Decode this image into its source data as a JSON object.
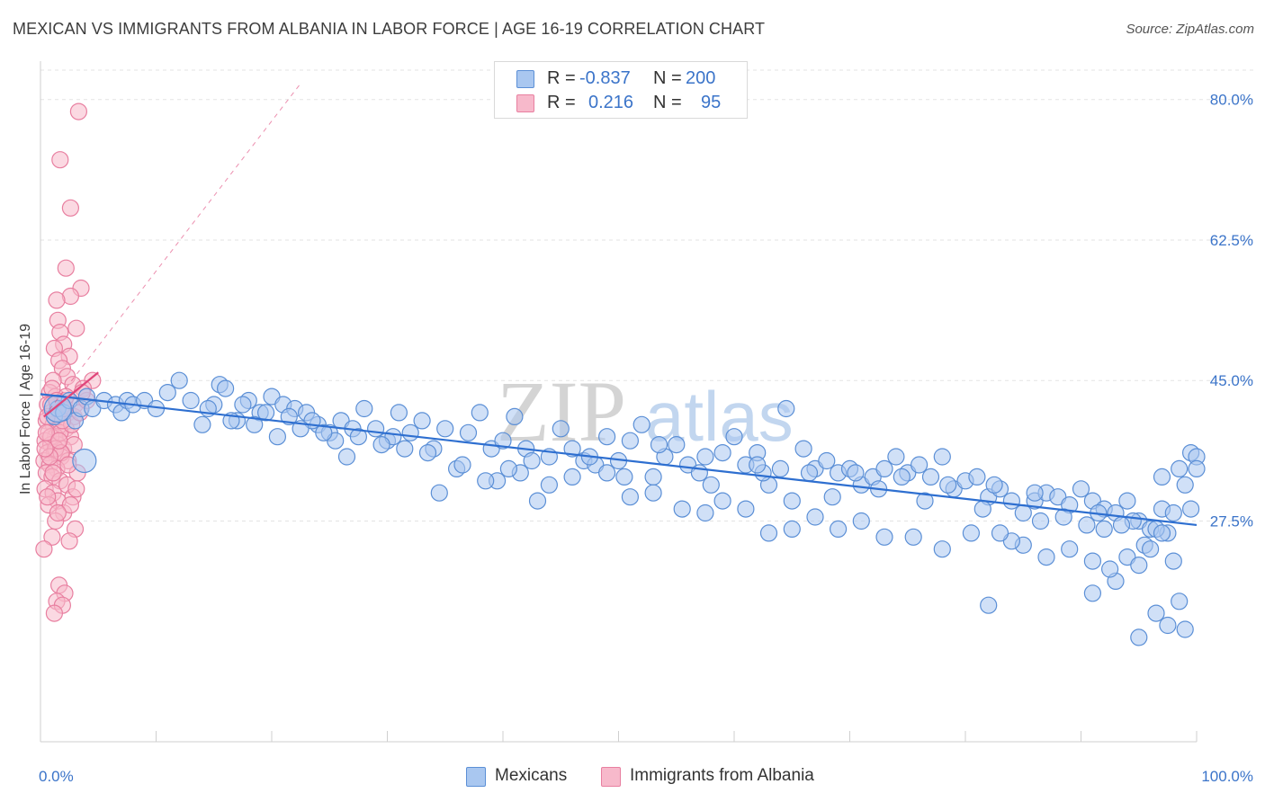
{
  "title": "MEXICAN VS IMMIGRANTS FROM ALBANIA IN LABOR FORCE | AGE 16-19 CORRELATION CHART",
  "source": "Source: ZipAtlas.com",
  "watermark": {
    "zip": "ZIP",
    "atlas": "atlas"
  },
  "colors": {
    "blue_fill": "#a9c7f0",
    "blue_stroke": "#5b8fd6",
    "blue_line": "#2e6fd0",
    "pink_fill": "#f7b9cb",
    "pink_stroke": "#e87fa0",
    "pink_line": "#e0457a",
    "tick_label": "#3b74c9",
    "grid": "#e3e3e3"
  },
  "legend_top": {
    "rows": [
      {
        "r_label": "R =",
        "r_value": "-0.837",
        "n_label": "N =",
        "n_value": "200"
      },
      {
        "r_label": "R =",
        "r_value": "0.216",
        "n_label": "N =",
        "n_value": "95"
      }
    ]
  },
  "legend_bottom": {
    "items": [
      "Mexicans",
      "Immigrants from Albania"
    ]
  },
  "chart_data": {
    "type": "scatter",
    "title": "MEXICAN VS IMMIGRANTS FROM ALBANIA IN LABOR FORCE | AGE 16-19 CORRELATION CHART",
    "xlabel": "",
    "ylabel": "In Labor Force | Age 16-19",
    "xlim": [
      0,
      100
    ],
    "ylim": [
      0,
      84
    ],
    "x_tick_labels": [
      "0.0%",
      "100.0%"
    ],
    "y_ticks": [
      27.5,
      45.0,
      62.5,
      80.0
    ],
    "y_tick_labels": [
      "27.5%",
      "45.0%",
      "62.5%",
      "80.0%"
    ],
    "grid": true,
    "legend_position": "top-center",
    "series": [
      {
        "name": "Mexicans",
        "R": -0.837,
        "N": 200,
        "trend": {
          "x": [
            0,
            100
          ],
          "y": [
            43.3,
            27.0
          ]
        },
        "points": [
          [
            1.2,
            40.5
          ],
          [
            1.5,
            41.5
          ],
          [
            2.0,
            41.0
          ],
          [
            2.5,
            42.5
          ],
          [
            3.0,
            40.0
          ],
          [
            3.5,
            41.5
          ],
          [
            4.0,
            43.0
          ],
          [
            4.5,
            41.5
          ],
          [
            5.5,
            42.5
          ],
          [
            6.5,
            42.0
          ],
          [
            7.0,
            41.0
          ],
          [
            7.5,
            42.5
          ],
          [
            8.0,
            42.0
          ],
          [
            9.0,
            42.5
          ],
          [
            10.0,
            41.5
          ],
          [
            11.0,
            43.5
          ],
          [
            12.0,
            45.0
          ],
          [
            13.0,
            42.5
          ],
          [
            14.0,
            39.5
          ],
          [
            15.5,
            44.5
          ],
          [
            16.0,
            44.0
          ],
          [
            17.0,
            40.0
          ],
          [
            18.0,
            42.5
          ],
          [
            19.0,
            41.0
          ],
          [
            20.0,
            43.0
          ],
          [
            21.0,
            42.0
          ],
          [
            22.0,
            41.5
          ],
          [
            23.0,
            41.0
          ],
          [
            24.0,
            39.5
          ],
          [
            25.0,
            38.5
          ],
          [
            26.0,
            40.0
          ],
          [
            27.0,
            39.0
          ],
          [
            28.0,
            41.5
          ],
          [
            29.0,
            39.0
          ],
          [
            30.0,
            37.5
          ],
          [
            31.0,
            41.0
          ],
          [
            32.0,
            38.5
          ],
          [
            33.0,
            40.0
          ],
          [
            34.0,
            36.5
          ],
          [
            35.0,
            39.0
          ],
          [
            36.0,
            34.0
          ],
          [
            37.0,
            38.5
          ],
          [
            38.0,
            41.0
          ],
          [
            39.0,
            36.5
          ],
          [
            40.0,
            37.5
          ],
          [
            41.0,
            40.5
          ],
          [
            41.5,
            33.5
          ],
          [
            42.0,
            36.5
          ],
          [
            43.0,
            30.0
          ],
          [
            44.0,
            35.5
          ],
          [
            45.0,
            39.0
          ],
          [
            46.0,
            36.5
          ],
          [
            47.0,
            35.0
          ],
          [
            48.0,
            34.5
          ],
          [
            49.0,
            38.0
          ],
          [
            50.0,
            35.0
          ],
          [
            51.0,
            37.5
          ],
          [
            52.0,
            39.5
          ],
          [
            53.0,
            33.0
          ],
          [
            54.0,
            35.5
          ],
          [
            55.0,
            37.0
          ],
          [
            56.0,
            34.5
          ],
          [
            57.0,
            33.5
          ],
          [
            58.0,
            32.0
          ],
          [
            59.0,
            36.0
          ],
          [
            60.0,
            38.0
          ],
          [
            61.0,
            34.5
          ],
          [
            62.0,
            36.0
          ],
          [
            63.0,
            32.0
          ],
          [
            64.0,
            34.0
          ],
          [
            65.0,
            30.0
          ],
          [
            66.0,
            36.5
          ],
          [
            67.0,
            34.0
          ],
          [
            68.0,
            35.0
          ],
          [
            69.0,
            33.5
          ],
          [
            70.0,
            34.0
          ],
          [
            71.0,
            32.0
          ],
          [
            72.0,
            33.0
          ],
          [
            73.0,
            34.0
          ],
          [
            74.0,
            35.5
          ],
          [
            75.0,
            33.5
          ],
          [
            76.0,
            34.5
          ],
          [
            77.0,
            33.0
          ],
          [
            78.0,
            35.5
          ],
          [
            79.0,
            31.5
          ],
          [
            80.0,
            32.5
          ],
          [
            81.0,
            33.0
          ],
          [
            82.0,
            30.5
          ],
          [
            83.0,
            31.5
          ],
          [
            84.0,
            30.0
          ],
          [
            85.0,
            28.5
          ],
          [
            86.0,
            30.0
          ],
          [
            87.0,
            31.0
          ],
          [
            88.0,
            30.5
          ],
          [
            89.0,
            29.5
          ],
          [
            90.0,
            31.5
          ],
          [
            91.0,
            30.0
          ],
          [
            92.0,
            29.0
          ],
          [
            93.0,
            28.5
          ],
          [
            94.0,
            30.0
          ],
          [
            95.0,
            27.5
          ],
          [
            96.0,
            26.5
          ],
          [
            97.0,
            29.0
          ],
          [
            98.0,
            28.5
          ],
          [
            99.0,
            32.0
          ],
          [
            34.5,
            31.0
          ],
          [
            39.5,
            32.5
          ],
          [
            50.5,
            33.0
          ],
          [
            62.5,
            33.5
          ],
          [
            68.5,
            30.5
          ],
          [
            72.5,
            31.5
          ],
          [
            76.5,
            30.0
          ],
          [
            81.5,
            29.0
          ],
          [
            86.5,
            27.5
          ],
          [
            90.5,
            27.0
          ],
          [
            94.5,
            27.5
          ],
          [
            97.5,
            26.0
          ],
          [
            99.5,
            29.0
          ],
          [
            64.5,
            41.5
          ],
          [
            53.5,
            37.0
          ],
          [
            30.5,
            38.0
          ],
          [
            47.5,
            35.5
          ],
          [
            57.5,
            35.5
          ],
          [
            62.0,
            34.5
          ],
          [
            66.5,
            33.5
          ],
          [
            70.5,
            33.5
          ],
          [
            74.5,
            33.0
          ],
          [
            78.5,
            32.0
          ],
          [
            82.5,
            32.0
          ],
          [
            86.0,
            31.0
          ],
          [
            88.5,
            28.0
          ],
          [
            91.5,
            28.5
          ],
          [
            93.5,
            27.0
          ],
          [
            95.5,
            24.5
          ],
          [
            96.5,
            26.5
          ],
          [
            97.0,
            33.0
          ],
          [
            98.5,
            34.0
          ],
          [
            99.5,
            36.0
          ],
          [
            100.0,
            35.5
          ],
          [
            92.0,
            26.5
          ],
          [
            94.0,
            23.0
          ],
          [
            96.0,
            24.0
          ],
          [
            98.0,
            22.5
          ],
          [
            91.0,
            18.5
          ],
          [
            93.0,
            20.0
          ],
          [
            95.0,
            22.0
          ],
          [
            97.0,
            26.0
          ],
          [
            100.0,
            34.0
          ],
          [
            82.0,
            17.0
          ],
          [
            96.5,
            16.0
          ],
          [
            97.5,
            14.5
          ],
          [
            99.0,
            14.0
          ],
          [
            98.5,
            17.5
          ],
          [
            95.0,
            13.0
          ],
          [
            87.0,
            23.0
          ],
          [
            92.5,
            21.5
          ],
          [
            85.0,
            24.5
          ],
          [
            89.0,
            24.0
          ],
          [
            91.0,
            22.5
          ],
          [
            84.0,
            25.0
          ],
          [
            83.0,
            26.0
          ],
          [
            80.5,
            26.0
          ],
          [
            78.0,
            24.0
          ],
          [
            75.5,
            25.5
          ],
          [
            73.0,
            25.5
          ],
          [
            71.0,
            27.5
          ],
          [
            69.0,
            26.5
          ],
          [
            67.0,
            28.0
          ],
          [
            65.0,
            26.5
          ],
          [
            63.0,
            26.0
          ],
          [
            61.0,
            29.0
          ],
          [
            59.0,
            30.0
          ],
          [
            57.5,
            28.5
          ],
          [
            55.5,
            29.0
          ],
          [
            53.0,
            31.0
          ],
          [
            51.0,
            30.5
          ],
          [
            49.0,
            33.5
          ],
          [
            46.0,
            33.0
          ],
          [
            44.0,
            32.0
          ],
          [
            42.5,
            35.0
          ],
          [
            40.5,
            34.0
          ],
          [
            38.5,
            32.5
          ],
          [
            36.5,
            34.5
          ],
          [
            33.5,
            36.0
          ],
          [
            31.5,
            36.5
          ],
          [
            29.5,
            37.0
          ],
          [
            27.5,
            38.0
          ],
          [
            26.5,
            35.5
          ],
          [
            25.5,
            37.5
          ],
          [
            24.5,
            38.5
          ],
          [
            23.5,
            40.0
          ],
          [
            22.5,
            39.0
          ],
          [
            21.5,
            40.5
          ],
          [
            20.5,
            38.0
          ],
          [
            19.5,
            41.0
          ],
          [
            18.5,
            39.5
          ],
          [
            17.5,
            42.0
          ],
          [
            16.5,
            40.0
          ],
          [
            15.0,
            42.0
          ],
          [
            14.5,
            41.5
          ]
        ]
      },
      {
        "name": "Immigrants from Albania",
        "R": 0.216,
        "N": 95,
        "trend": {
          "x": [
            0.3,
            5.0
          ],
          "y": [
            40.5,
            46.0
          ]
        },
        "trend_extended": {
          "x": [
            0.3,
            22.5
          ],
          "y": [
            40.5,
            82.0
          ]
        },
        "points": [
          [
            3.3,
            78.5
          ],
          [
            1.7,
            72.5
          ],
          [
            2.6,
            66.5
          ],
          [
            2.2,
            59.0
          ],
          [
            3.5,
            56.5
          ],
          [
            2.6,
            55.5
          ],
          [
            1.4,
            55.0
          ],
          [
            1.5,
            52.5
          ],
          [
            3.1,
            51.5
          ],
          [
            1.7,
            51.0
          ],
          [
            2.0,
            49.5
          ],
          [
            1.2,
            49.0
          ],
          [
            2.5,
            48.0
          ],
          [
            1.6,
            47.5
          ],
          [
            1.9,
            46.5
          ],
          [
            2.3,
            45.5
          ],
          [
            4.5,
            45.0
          ],
          [
            1.1,
            45.0
          ],
          [
            2.8,
            44.5
          ],
          [
            3.7,
            44.0
          ],
          [
            0.8,
            43.5
          ],
          [
            1.3,
            43.0
          ],
          [
            2.1,
            42.5
          ],
          [
            3.0,
            42.0
          ],
          [
            0.6,
            42.0
          ],
          [
            1.8,
            41.5
          ],
          [
            2.4,
            41.0
          ],
          [
            0.9,
            41.0
          ],
          [
            1.4,
            40.5
          ],
          [
            2.9,
            40.5
          ],
          [
            0.5,
            40.0
          ],
          [
            1.1,
            39.5
          ],
          [
            1.6,
            39.0
          ],
          [
            2.2,
            39.0
          ],
          [
            0.7,
            38.5
          ],
          [
            1.3,
            38.0
          ],
          [
            2.6,
            38.0
          ],
          [
            0.4,
            37.5
          ],
          [
            0.9,
            37.0
          ],
          [
            1.5,
            37.0
          ],
          [
            2.0,
            36.5
          ],
          [
            0.6,
            36.0
          ],
          [
            1.2,
            36.0
          ],
          [
            1.8,
            35.5
          ],
          [
            2.4,
            35.0
          ],
          [
            0.3,
            35.0
          ],
          [
            0.8,
            34.5
          ],
          [
            1.4,
            34.0
          ],
          [
            3.2,
            33.5
          ],
          [
            0.5,
            33.5
          ],
          [
            1.0,
            33.0
          ],
          [
            1.7,
            32.5
          ],
          [
            2.3,
            32.0
          ],
          [
            0.4,
            31.5
          ],
          [
            1.1,
            31.0
          ],
          [
            2.8,
            30.5
          ],
          [
            1.5,
            30.0
          ],
          [
            0.7,
            29.5
          ],
          [
            2.0,
            28.5
          ],
          [
            1.3,
            27.5
          ],
          [
            3.0,
            26.5
          ],
          [
            1.0,
            25.5
          ],
          [
            2.5,
            25.0
          ],
          [
            0.3,
            24.0
          ],
          [
            1.6,
            19.5
          ],
          [
            2.1,
            18.5
          ],
          [
            1.4,
            17.5
          ],
          [
            1.9,
            17.0
          ],
          [
            1.2,
            16.0
          ],
          [
            0.9,
            38.0
          ],
          [
            1.7,
            38.5
          ],
          [
            2.7,
            39.5
          ],
          [
            0.6,
            40.5
          ],
          [
            1.9,
            40.0
          ],
          [
            3.4,
            41.0
          ],
          [
            4.0,
            42.5
          ],
          [
            2.2,
            43.0
          ],
          [
            1.0,
            44.0
          ],
          [
            3.6,
            43.5
          ],
          [
            1.3,
            36.5
          ],
          [
            0.5,
            38.5
          ],
          [
            2.9,
            37.0
          ],
          [
            1.8,
            36.0
          ],
          [
            0.8,
            35.5
          ],
          [
            2.4,
            34.5
          ],
          [
            1.1,
            33.5
          ],
          [
            3.1,
            31.5
          ],
          [
            0.6,
            30.5
          ],
          [
            2.6,
            29.5
          ],
          [
            1.5,
            28.5
          ],
          [
            0.9,
            42.0
          ],
          [
            1.4,
            42.5
          ],
          [
            2.0,
            41.5
          ],
          [
            0.4,
            36.5
          ],
          [
            1.6,
            37.5
          ]
        ]
      }
    ]
  }
}
